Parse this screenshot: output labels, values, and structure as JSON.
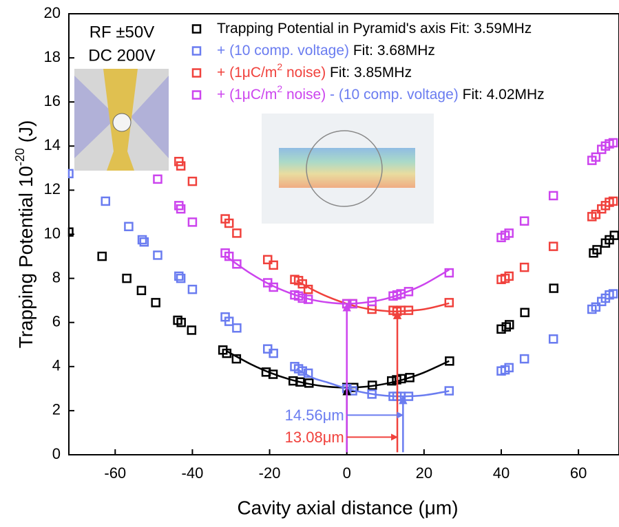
{
  "chart_data": {
    "type": "scatter",
    "xlabel": "Cavity axial distance (μm)",
    "ylabel_parts": [
      {
        "text": "Trapping Potential 10"
      },
      {
        "text": "-20",
        "sup": true
      },
      {
        "text": " (J)"
      }
    ],
    "inset_text": [
      "RF ±50V",
      "DC 200V"
    ],
    "xlim": [
      -72,
      70.5
    ],
    "ylim": [
      0,
      20
    ],
    "xticks": [
      -60,
      -40,
      -20,
      0,
      20,
      40,
      60
    ],
    "yticks": [
      0,
      2,
      4,
      6,
      8,
      10,
      12,
      14,
      16,
      18,
      20
    ],
    "series": [
      {
        "color": "#000000",
        "label_parts": [
          {
            "text": "Trapping Potential in Pyramid's axis Fit: 3.59MHz",
            "color": "#000000"
          }
        ],
        "x": [
          -72,
          -63.4,
          -57,
          -53.2,
          -49.5,
          -43.8,
          -42.9,
          -40.2,
          -32.1,
          -31.1,
          -28.6,
          -20.9,
          -19.1,
          -13.9,
          -12.1,
          -9.8,
          0,
          1.8,
          6.6,
          11.6,
          12.9,
          14.1,
          16.3,
          26.6,
          40,
          41.3,
          42.1,
          46.1,
          53.6,
          63.9,
          64.8,
          67,
          68,
          69.3
        ],
        "values": [
          10.1,
          9.0,
          8.0,
          7.45,
          6.9,
          6.1,
          6.0,
          5.65,
          4.75,
          4.6,
          4.35,
          3.75,
          3.65,
          3.35,
          3.3,
          3.25,
          3.05,
          3.05,
          3.15,
          3.35,
          3.4,
          3.45,
          3.5,
          4.25,
          5.7,
          5.8,
          5.9,
          6.45,
          7.55,
          9.15,
          9.3,
          9.6,
          9.75,
          9.95
        ],
        "fit": {
          "x": [
            -31,
            -25,
            -20,
            -15,
            -10,
            -5,
            0,
            5,
            10,
            15,
            20,
            26.5
          ],
          "values": [
            4.69,
            4.12,
            3.73,
            3.43,
            3.22,
            3.09,
            3.05,
            3.09,
            3.22,
            3.43,
            3.73,
            4.25
          ]
        }
      },
      {
        "color": "#6a7cf0",
        "label_parts": [
          {
            "text": "+ (10 comp. voltage)",
            "color": "#6a7cf0"
          },
          {
            "text": " Fit: 3.68MHz",
            "color": "#000000"
          }
        ],
        "x": [
          -72,
          -62.5,
          -56.5,
          -53,
          -52.5,
          -49,
          -43.5,
          -43,
          -40,
          -31.5,
          -30.5,
          -28.5,
          -20.5,
          -19,
          -13.5,
          -12.5,
          -11.5,
          -10,
          0,
          1.5,
          6.5,
          12,
          13,
          14,
          16,
          26.5,
          40,
          41,
          42,
          46,
          53.5,
          63.5,
          64.5,
          66,
          67,
          68,
          69
        ],
        "values": [
          12.75,
          11.5,
          10.35,
          9.75,
          9.65,
          9.05,
          8.1,
          8.0,
          7.5,
          6.25,
          6.05,
          5.75,
          4.8,
          4.6,
          4.0,
          3.9,
          3.8,
          3.7,
          3.0,
          2.9,
          2.75,
          2.65,
          2.65,
          2.65,
          2.65,
          2.9,
          3.8,
          3.85,
          3.95,
          4.35,
          5.25,
          6.6,
          6.7,
          6.95,
          7.1,
          7.25,
          7.3
        ],
        "fit": {
          "x": [
            -13,
            -9,
            -5,
            0,
            5,
            10,
            14.56,
            20,
            26.5
          ],
          "values": [
            3.9,
            3.5,
            3.28,
            3.0,
            2.8,
            2.68,
            2.65,
            2.7,
            2.89
          ]
        }
      },
      {
        "color": "#f0413c",
        "label_parts": [
          {
            "text": "+ (1μC/m",
            "color": "#f0413c"
          },
          {
            "text": "2",
            "color": "#f0413c",
            "sup": true
          },
          {
            "text": " noise)",
            "color": "#f0413c"
          },
          {
            "text": " Fit: 3.85MHz",
            "color": "#000000"
          }
        ],
        "x": [
          -43.5,
          -43,
          -40,
          -31.5,
          -30.5,
          -28.5,
          -20.5,
          -19,
          -13.5,
          -12.5,
          -11.5,
          -10,
          0,
          1.5,
          6.5,
          12,
          13,
          14,
          16,
          26.5,
          40,
          41,
          42,
          46,
          53.5,
          63.5,
          64.5,
          66,
          67,
          68,
          69
        ],
        "values": [
          13.3,
          13.1,
          12.4,
          10.7,
          10.5,
          10.05,
          8.85,
          8.6,
          7.95,
          7.9,
          7.75,
          7.5,
          6.85,
          6.85,
          6.6,
          6.55,
          6.5,
          6.55,
          6.55,
          6.9,
          7.95,
          8.0,
          8.1,
          8.5,
          9.45,
          10.8,
          10.9,
          11.15,
          11.3,
          11.45,
          11.5
        ],
        "fit": {
          "x": [
            -13,
            -9,
            -5,
            0,
            5,
            10,
            13.08,
            20,
            26.5
          ],
          "values": [
            7.89,
            7.5,
            7.17,
            6.85,
            6.63,
            6.52,
            6.5,
            6.6,
            6.87
          ]
        }
      },
      {
        "color": "#cc44ee",
        "label_parts": [
          {
            "text": "+ (1μC/m",
            "color": "#cc44ee"
          },
          {
            "text": "2",
            "color": "#cc44ee",
            "sup": true
          },
          {
            "text": " noise)",
            "color": "#cc44ee"
          },
          {
            "text": " - (10 comp. voltage)",
            "color": "#6a7cf0"
          },
          {
            "text": " Fit: 4.02MHz",
            "color": "#000000"
          }
        ],
        "x": [
          -49,
          -43.5,
          -43,
          -40,
          -31.5,
          -30.5,
          -28.5,
          -20.5,
          -19,
          -13.5,
          -12.5,
          -11.5,
          -10,
          0,
          1.5,
          6.5,
          12,
          13,
          14,
          16,
          26.5,
          40,
          41,
          42,
          46,
          53.5,
          63.5,
          64.5,
          66,
          67,
          68,
          69
        ],
        "values": [
          12.5,
          11.3,
          11.15,
          10.55,
          9.15,
          9.0,
          8.65,
          7.8,
          7.6,
          7.25,
          7.2,
          7.1,
          7.05,
          6.85,
          6.85,
          6.95,
          7.2,
          7.25,
          7.3,
          7.4,
          8.25,
          9.85,
          9.95,
          10.05,
          10.6,
          11.75,
          13.35,
          13.5,
          13.85,
          14.0,
          14.1,
          14.15
        ],
        "fit": {
          "x": [
            -31,
            -25,
            -20,
            -15,
            -10,
            -5,
            0,
            5,
            10,
            15,
            20,
            26.5
          ],
          "values": [
            8.96,
            8.23,
            7.73,
            7.35,
            7.07,
            6.91,
            6.85,
            6.91,
            7.07,
            7.35,
            7.73,
            8.39
          ]
        }
      }
    ],
    "arrows": [
      {
        "x": 0,
        "y": 3.05,
        "color": "#000000"
      },
      {
        "x": 0,
        "y": 6.85,
        "color": "#cc44ee"
      },
      {
        "x": 13.08,
        "y": 6.5,
        "color": "#f0413c"
      },
      {
        "x": 14.56,
        "y": 2.65,
        "color": "#6a7cf0"
      }
    ],
    "annotations": [
      {
        "text": "14.56μm",
        "x": 14.56,
        "color": "#6a7cf0"
      },
      {
        "text": "13.08μm",
        "x": 13.08,
        "color": "#f0413c"
      }
    ]
  }
}
